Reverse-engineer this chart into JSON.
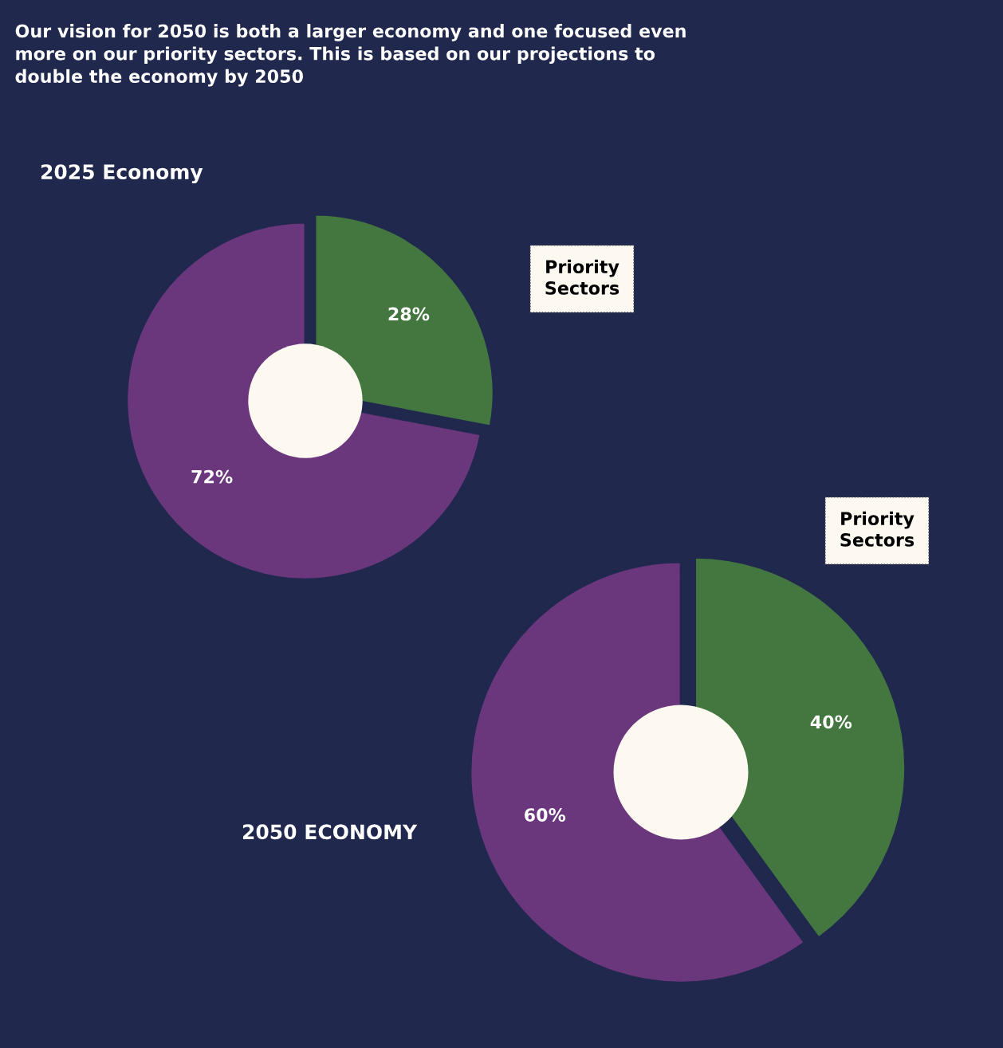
{
  "chart_data": [
    {
      "type": "donut",
      "title": "2025 Economy",
      "annotations": [
        "Our vision for 2050 is both a larger economy and one focused even more on our priority sectors. This is based on our projections to double the economy by 2050"
      ],
      "categories": [
        "Priority Sectors",
        null
      ],
      "values": [
        28,
        72
      ],
      "colors": [
        "#43773f",
        "#6a377c"
      ],
      "value_labels": [
        "28%",
        "72%"
      ]
    },
    {
      "type": "donut",
      "title": "2050 ECONOMY",
      "categories": [
        "Priority Sectors",
        null
      ],
      "values": [
        40,
        60
      ],
      "colors": [
        "#43773f",
        "#6a377c"
      ],
      "value_labels": [
        "40%",
        "60%"
      ]
    }
  ]
}
